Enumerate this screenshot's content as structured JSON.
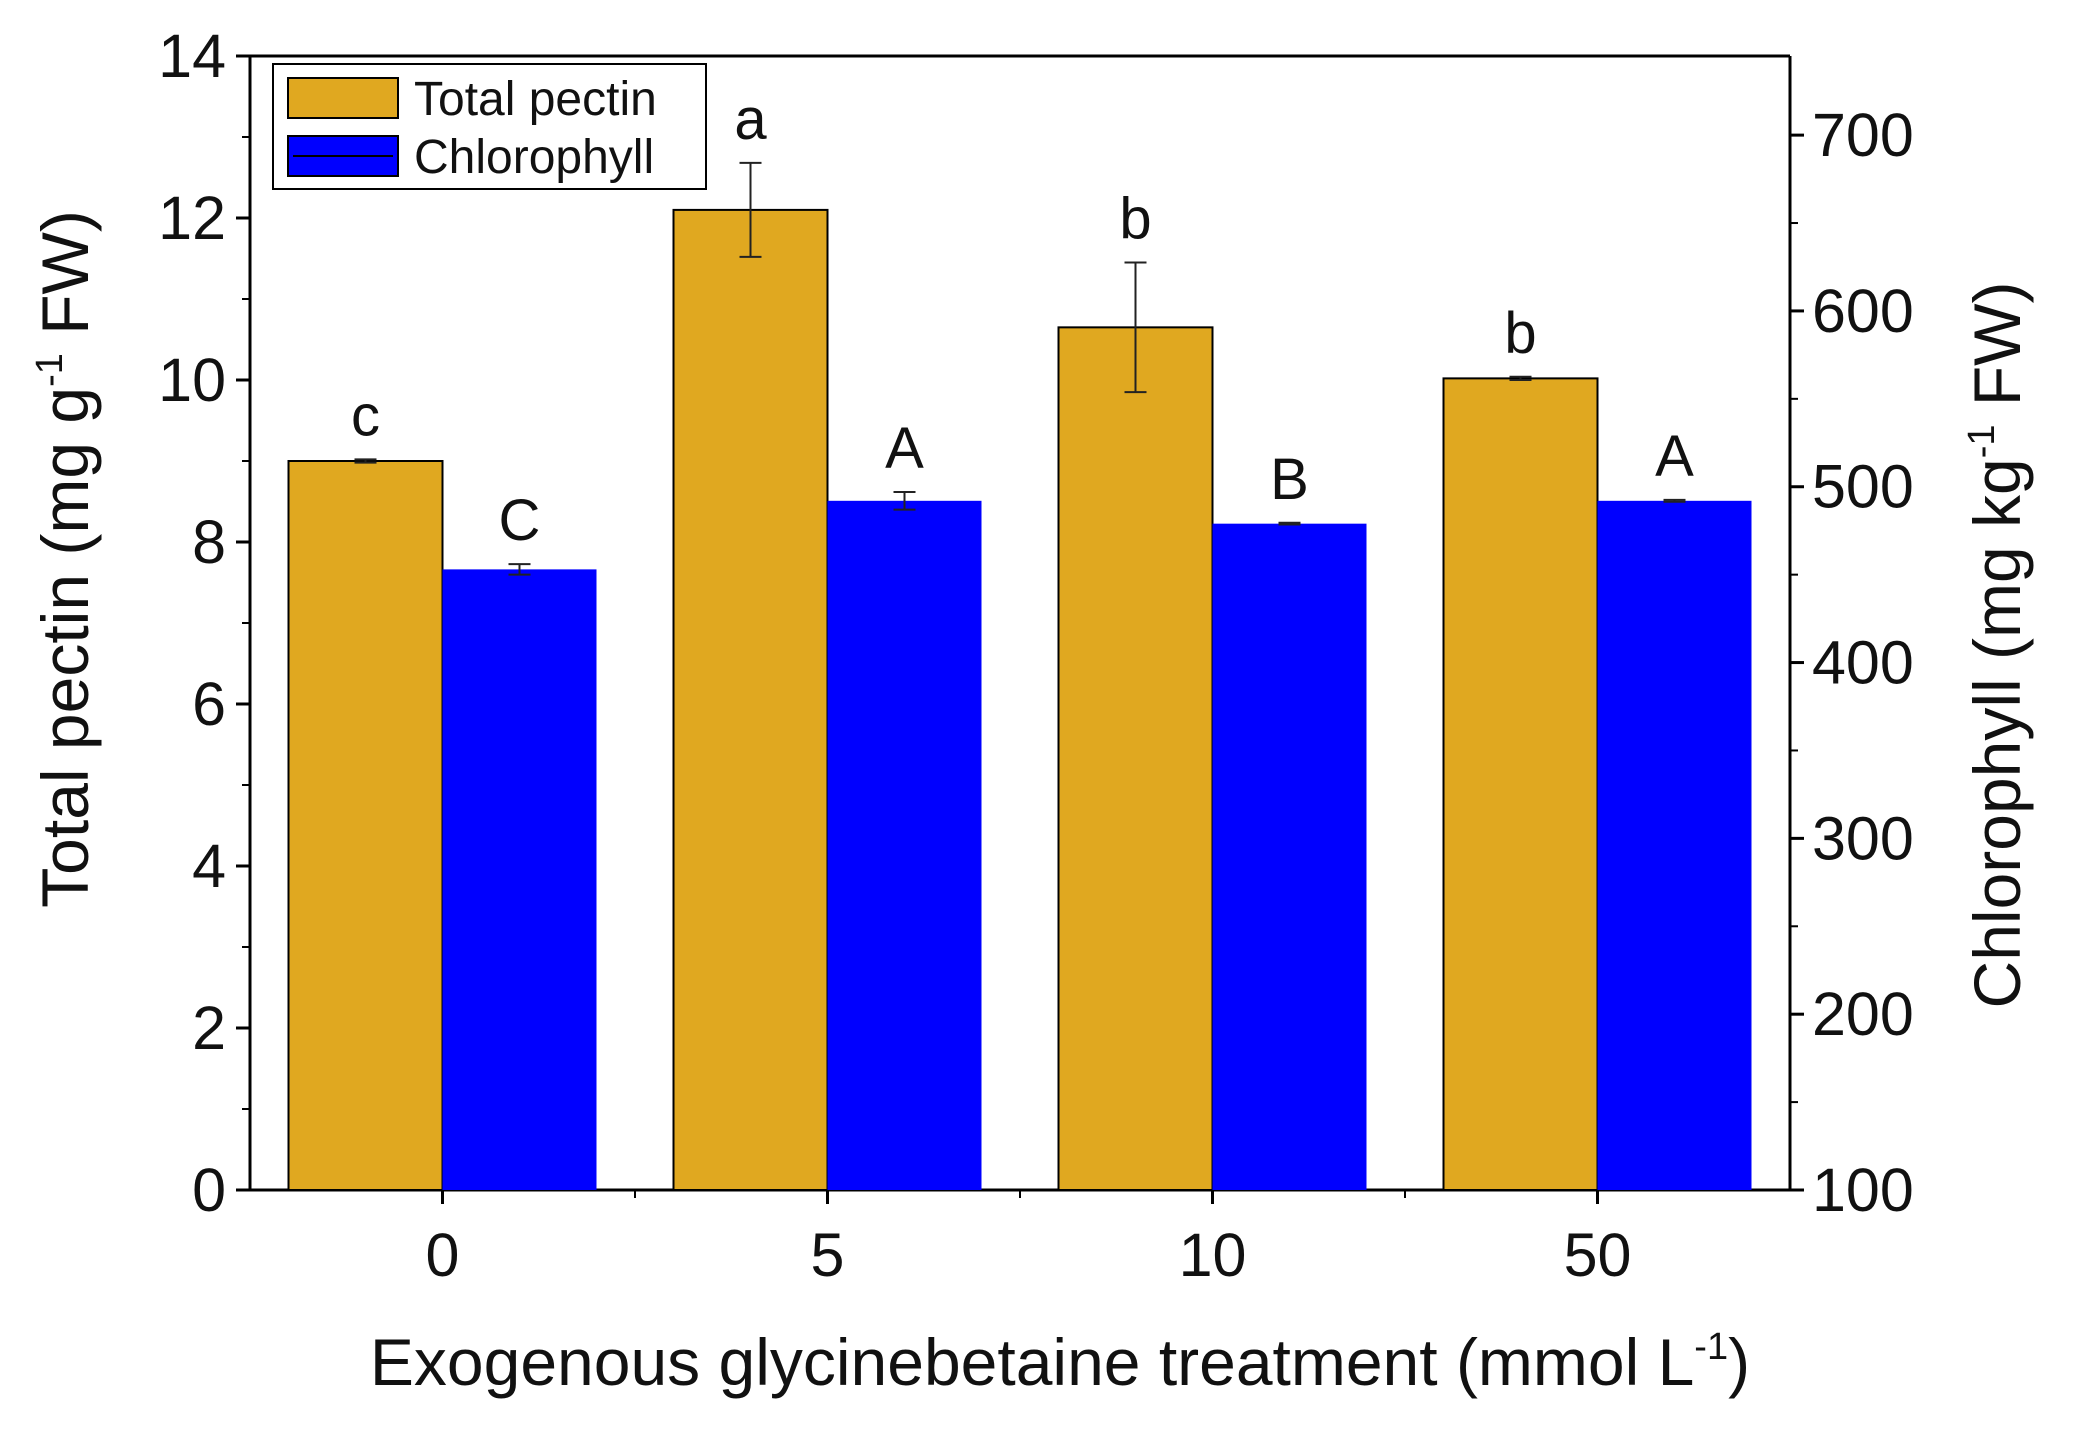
{
  "chart_data": {
    "type": "bar",
    "categories": [
      "0",
      "5",
      "10",
      "50"
    ],
    "xlabel": {
      "text": "Exogenous glycinebetaine treatment (mmol L",
      "sup": "-1",
      "suffix": ")"
    },
    "y_left": {
      "label": {
        "text": "Total pectin (mg g",
        "sup": "-1",
        "suffix": " FW)"
      },
      "ylim": [
        0,
        14
      ],
      "ticks": [
        "0",
        "2",
        "4",
        "6",
        "8",
        "10",
        "12",
        "14"
      ]
    },
    "y_right": {
      "label": {
        "text": "Chlorophyll (mg kg",
        "sup": "-1",
        "suffix": " FW)"
      },
      "ylim": [
        100,
        745
      ],
      "ticks": [
        "100",
        "200",
        "300",
        "400",
        "500",
        "600",
        "700"
      ]
    },
    "series": [
      {
        "name": "Total pectin",
        "axis": "left",
        "color": "#E0A820",
        "values": [
          9.0,
          12.1,
          10.65,
          10.02
        ],
        "errors": [
          0.02,
          0.58,
          0.8,
          0.02
        ],
        "letters": [
          "c",
          "a",
          "b",
          "b"
        ]
      },
      {
        "name": "Chlorophyll",
        "axis": "right",
        "color": "#0000FF",
        "values": [
          453,
          492,
          479,
          492
        ],
        "errors": [
          3,
          5,
          0.5,
          0.5
        ],
        "letters": [
          "C",
          "A",
          "B",
          "A"
        ]
      }
    ],
    "legend": {
      "position": "top-left",
      "items": [
        "Total pectin",
        "Chlorophyll"
      ]
    }
  }
}
